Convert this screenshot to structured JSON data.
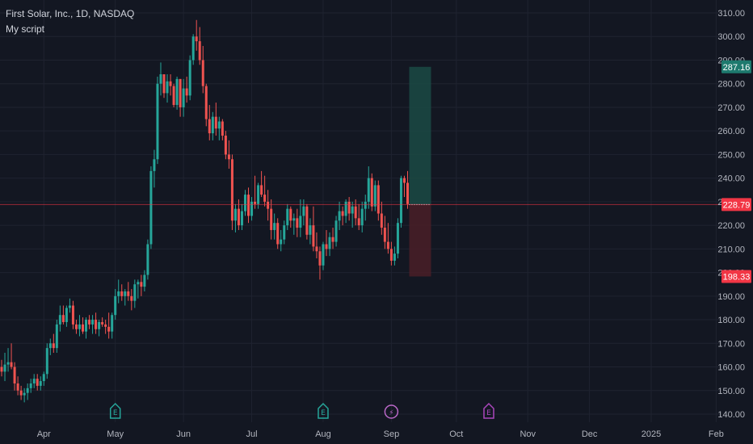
{
  "legend": {
    "title": "First Solar, Inc., 1D, NASDAQ",
    "script": "My script"
  },
  "colors": {
    "background": "#131722",
    "up": "#26a69a",
    "down": "#ef5350",
    "grid": "#1f2330",
    "axis_text": "#b2b5be",
    "current_line": "#f23645",
    "profit_zone": "#1b4a44",
    "loss_zone": "#4a1f27",
    "event_earnings": "#26a69a",
    "event_split": "#ba68c8",
    "event_future_earnings": "#ab47bc"
  },
  "chart_data": {
    "type": "candlestick",
    "y_axis": {
      "ticks": [
        140,
        150,
        160,
        170,
        180,
        190,
        200,
        210,
        220,
        230,
        240,
        250,
        260,
        270,
        280,
        290,
        300,
        310
      ],
      "tick_labels": [
        "140.00",
        "150.00",
        "160.00",
        "170.00",
        "180.00",
        "190.00",
        "200.00",
        "210.00",
        "220.00",
        "230.00",
        "240.00",
        "250.00",
        "260.00",
        "270.00",
        "280.00",
        "290.00",
        "300.00",
        "310.00"
      ],
      "range": [
        137.5,
        313.5
      ]
    },
    "x_axis": {
      "labels": [
        "Apr",
        "May",
        "Jun",
        "Jul",
        "Aug",
        "Sep",
        "Oct",
        "Nov",
        "Dec",
        "2025",
        "Feb"
      ],
      "label_bar_index": [
        13,
        35,
        56,
        77,
        99,
        120,
        140,
        162,
        181,
        200,
        220
      ]
    },
    "candles_o_h_l_c": [
      [
        160,
        163,
        156,
        158
      ],
      [
        158,
        166,
        154,
        161
      ],
      [
        161,
        168,
        158,
        162
      ],
      [
        162,
        170,
        159,
        160
      ],
      [
        160,
        162,
        150,
        153
      ],
      [
        153,
        156,
        148,
        150
      ],
      [
        150,
        152,
        146,
        148
      ],
      [
        148,
        151,
        145,
        149
      ],
      [
        149,
        153,
        146,
        151
      ],
      [
        151,
        155,
        149,
        153
      ],
      [
        153,
        157,
        151,
        155
      ],
      [
        155,
        157,
        150,
        152
      ],
      [
        152,
        156,
        150,
        154
      ],
      [
        154,
        158,
        152,
        157
      ],
      [
        157,
        170,
        155,
        168
      ],
      [
        168,
        172,
        165,
        170
      ],
      [
        170,
        174,
        166,
        168
      ],
      [
        168,
        180,
        166,
        178
      ],
      [
        178,
        186,
        175,
        182
      ],
      [
        182,
        186,
        178,
        179
      ],
      [
        179,
        186,
        177,
        185
      ],
      [
        185,
        189,
        183,
        186
      ],
      [
        186,
        188,
        176,
        178
      ],
      [
        178,
        180,
        174,
        176
      ],
      [
        176,
        182,
        173,
        178
      ],
      [
        178,
        181,
        174,
        175
      ],
      [
        175,
        181,
        172,
        180
      ],
      [
        180,
        182,
        176,
        178
      ],
      [
        178,
        182,
        174,
        180
      ],
      [
        180,
        183,
        174,
        176
      ],
      [
        176,
        180,
        173,
        179
      ],
      [
        179,
        181,
        177,
        178
      ],
      [
        178,
        180,
        174,
        177
      ],
      [
        177,
        183,
        172,
        175
      ],
      [
        175,
        183,
        172,
        182
      ],
      [
        182,
        193,
        180,
        190
      ],
      [
        190,
        197,
        187,
        192
      ],
      [
        192,
        195,
        188,
        190
      ],
      [
        190,
        193,
        186,
        192
      ],
      [
        192,
        196,
        188,
        190
      ],
      [
        190,
        193,
        184,
        188
      ],
      [
        188,
        197,
        185,
        195
      ],
      [
        195,
        197,
        189,
        196
      ],
      [
        196,
        199,
        190,
        194
      ],
      [
        194,
        201,
        192,
        199
      ],
      [
        199,
        214,
        197,
        212
      ],
      [
        212,
        245,
        210,
        243
      ],
      [
        243,
        252,
        236,
        248
      ],
      [
        248,
        283,
        246,
        280
      ],
      [
        280,
        289,
        275,
        284
      ],
      [
        284,
        284,
        274,
        276
      ],
      [
        276,
        284,
        272,
        281
      ],
      [
        281,
        284,
        275,
        279
      ],
      [
        279,
        280,
        270,
        271
      ],
      [
        271,
        283,
        269,
        282
      ],
      [
        282,
        282,
        266,
        270
      ],
      [
        270,
        282,
        266,
        278
      ],
      [
        278,
        283,
        272,
        275
      ],
      [
        275,
        292,
        273,
        290
      ],
      [
        290,
        301,
        288,
        300
      ],
      [
        300,
        307,
        294,
        298
      ],
      [
        298,
        304,
        288,
        290
      ],
      [
        290,
        296,
        276,
        279
      ],
      [
        279,
        280,
        262,
        265
      ],
      [
        265,
        271,
        256,
        259
      ],
      [
        259,
        268,
        256,
        266
      ],
      [
        266,
        272,
        258,
        261
      ],
      [
        261,
        266,
        256,
        264
      ],
      [
        264,
        265,
        256,
        258
      ],
      [
        258,
        260,
        248,
        250
      ],
      [
        250,
        256,
        244,
        248
      ],
      [
        248,
        250,
        218,
        222
      ],
      [
        222,
        229,
        217,
        227
      ],
      [
        227,
        231,
        218,
        220
      ],
      [
        220,
        229,
        218,
        226
      ],
      [
        226,
        235,
        224,
        233
      ],
      [
        233,
        236,
        221,
        224
      ],
      [
        224,
        232,
        222,
        230
      ],
      [
        230,
        241,
        227,
        229
      ],
      [
        229,
        238,
        227,
        237
      ],
      [
        237,
        243,
        232,
        233
      ],
      [
        233,
        241,
        228,
        230
      ],
      [
        230,
        235,
        222,
        227
      ],
      [
        227,
        231,
        214,
        218
      ],
      [
        218,
        225,
        214,
        221
      ],
      [
        221,
        223,
        210,
        212
      ],
      [
        212,
        218,
        209,
        214
      ],
      [
        214,
        222,
        212,
        220
      ],
      [
        220,
        229,
        218,
        227
      ],
      [
        227,
        228,
        219,
        222
      ],
      [
        222,
        225,
        216,
        223
      ],
      [
        223,
        227,
        215,
        219
      ],
      [
        219,
        231,
        215,
        224
      ],
      [
        224,
        231,
        220,
        228
      ],
      [
        228,
        229,
        214,
        216
      ],
      [
        216,
        223,
        212,
        220
      ],
      [
        220,
        228,
        209,
        211
      ],
      [
        211,
        217,
        206,
        209
      ],
      [
        209,
        211,
        197,
        203
      ],
      [
        203,
        213,
        201,
        212
      ],
      [
        212,
        218,
        207,
        210
      ],
      [
        210,
        217,
        207,
        215
      ],
      [
        215,
        219,
        210,
        213
      ],
      [
        213,
        224,
        211,
        222
      ],
      [
        222,
        230,
        218,
        226
      ],
      [
        226,
        228,
        220,
        224
      ],
      [
        224,
        231,
        221,
        230
      ],
      [
        230,
        232,
        222,
        225
      ],
      [
        225,
        230,
        219,
        228
      ],
      [
        228,
        231,
        220,
        223
      ],
      [
        223,
        229,
        218,
        220
      ],
      [
        220,
        230,
        217,
        227
      ],
      [
        227,
        233,
        222,
        230
      ],
      [
        230,
        245,
        227,
        240
      ],
      [
        240,
        242,
        226,
        228
      ],
      [
        228,
        239,
        226,
        237
      ],
      [
        237,
        239,
        222,
        225
      ],
      [
        225,
        230,
        216,
        219
      ],
      [
        219,
        224,
        210,
        213
      ],
      [
        213,
        221,
        208,
        210
      ],
      [
        210,
        213,
        203,
        205
      ],
      [
        205,
        211,
        203,
        208
      ],
      [
        208,
        223,
        206,
        221
      ],
      [
        221,
        241,
        219,
        240
      ],
      [
        240,
        241,
        232,
        238
      ],
      [
        238,
        243,
        227,
        229
      ]
    ],
    "current_price": 228.79,
    "take_profit": 287.16,
    "stop_loss": 198.33,
    "events": [
      {
        "type": "earnings",
        "label": "E",
        "bar": 35
      },
      {
        "type": "earnings",
        "label": "E",
        "bar": 99
      },
      {
        "type": "split",
        "label": "⚡",
        "bar": 120
      },
      {
        "type": "future_earnings",
        "label": "E",
        "bar": 150
      }
    ]
  },
  "price_tags": {
    "take_profit_label": "287.16",
    "current_label": "228.79",
    "stop_loss_label": "198.33"
  }
}
